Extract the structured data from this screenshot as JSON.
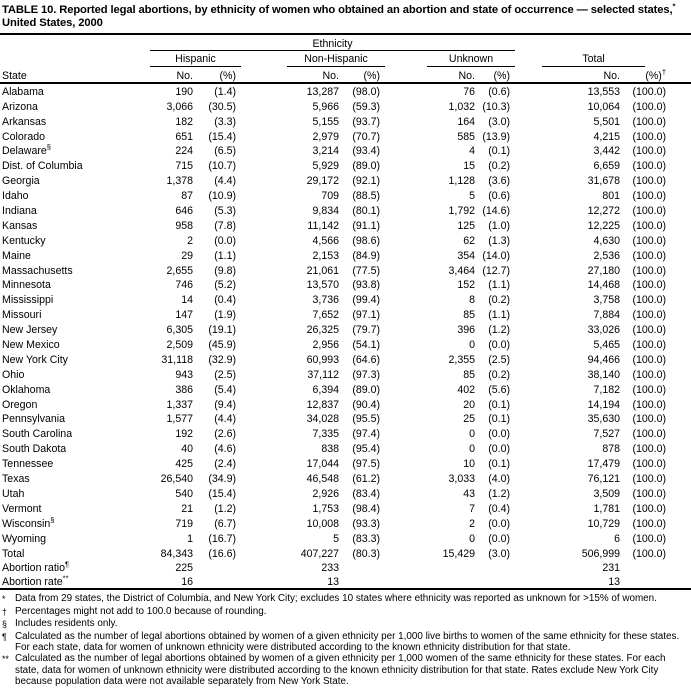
{
  "header": {
    "title_part1": "TABLE 10. Reported legal abortions, by ethnicity of women who obtained an abortion and state of occurrence — selected states,",
    "title_sup": "*",
    "title_part2": " United States, 2000"
  },
  "table": {
    "ethnicity_label": "Ethnicity",
    "state_label": "State",
    "groups": [
      {
        "label": "Hispanic",
        "no": "No.",
        "pct": "(%)"
      },
      {
        "label": "Non-Hispanic",
        "no": "No.",
        "pct": "(%)"
      },
      {
        "label": "Unknown",
        "no": "No.",
        "pct": "(%)"
      },
      {
        "label": "Total",
        "no": "No.",
        "pct": "(%)",
        "pct_sup": "†"
      }
    ],
    "rows": [
      {
        "state": "Alabama",
        "sup": "",
        "h_no": "190",
        "h_pct": "(1.4)",
        "nh_no": "13,287",
        "nh_pct": "(98.0)",
        "u_no": "76",
        "u_pct": "(0.6)",
        "t_no": "13,553",
        "t_pct": "(100.0)"
      },
      {
        "state": "Arizona",
        "sup": "",
        "h_no": "3,066",
        "h_pct": "(30.5)",
        "nh_no": "5,966",
        "nh_pct": "(59.3)",
        "u_no": "1,032",
        "u_pct": "(10.3)",
        "t_no": "10,064",
        "t_pct": "(100.0)"
      },
      {
        "state": "Arkansas",
        "sup": "",
        "h_no": "182",
        "h_pct": "(3.3)",
        "nh_no": "5,155",
        "nh_pct": "(93.7)",
        "u_no": "164",
        "u_pct": "(3.0)",
        "t_no": "5,501",
        "t_pct": "(100.0)"
      },
      {
        "state": "Colorado",
        "sup": "",
        "h_no": "651",
        "h_pct": "(15.4)",
        "nh_no": "2,979",
        "nh_pct": "(70.7)",
        "u_no": "585",
        "u_pct": "(13.9)",
        "t_no": "4,215",
        "t_pct": "(100.0)"
      },
      {
        "state": "Delaware",
        "sup": "§",
        "h_no": "224",
        "h_pct": "(6.5)",
        "nh_no": "3,214",
        "nh_pct": "(93.4)",
        "u_no": "4",
        "u_pct": "(0.1)",
        "t_no": "3,442",
        "t_pct": "(100.0)"
      },
      {
        "state": "Dist. of Columbia",
        "sup": "",
        "h_no": "715",
        "h_pct": "(10.7)",
        "nh_no": "5,929",
        "nh_pct": "(89.0)",
        "u_no": "15",
        "u_pct": "(0.2)",
        "t_no": "6,659",
        "t_pct": "(100.0)"
      },
      {
        "state": "Georgia",
        "sup": "",
        "h_no": "1,378",
        "h_pct": "(4.4)",
        "nh_no": "29,172",
        "nh_pct": "(92.1)",
        "u_no": "1,128",
        "u_pct": "(3.6)",
        "t_no": "31,678",
        "t_pct": "(100.0)"
      },
      {
        "state": "Idaho",
        "sup": "",
        "h_no": "87",
        "h_pct": "(10.9)",
        "nh_no": "709",
        "nh_pct": "(88.5)",
        "u_no": "5",
        "u_pct": "(0.6)",
        "t_no": "801",
        "t_pct": "(100.0)"
      },
      {
        "state": "Indiana",
        "sup": "",
        "h_no": "646",
        "h_pct": "(5.3)",
        "nh_no": "9,834",
        "nh_pct": "(80.1)",
        "u_no": "1,792",
        "u_pct": "(14.6)",
        "t_no": "12,272",
        "t_pct": "(100.0)"
      },
      {
        "state": "Kansas",
        "sup": "",
        "h_no": "958",
        "h_pct": "(7.8)",
        "nh_no": "11,142",
        "nh_pct": "(91.1)",
        "u_no": "125",
        "u_pct": "(1.0)",
        "t_no": "12,225",
        "t_pct": "(100.0)"
      },
      {
        "state": "Kentucky",
        "sup": "",
        "h_no": "2",
        "h_pct": "(0.0)",
        "nh_no": "4,566",
        "nh_pct": "(98.6)",
        "u_no": "62",
        "u_pct": "(1.3)",
        "t_no": "4,630",
        "t_pct": "(100.0)"
      },
      {
        "state": "Maine",
        "sup": "",
        "h_no": "29",
        "h_pct": "(1.1)",
        "nh_no": "2,153",
        "nh_pct": "(84.9)",
        "u_no": "354",
        "u_pct": "(14.0)",
        "t_no": "2,536",
        "t_pct": "(100.0)"
      },
      {
        "state": "Massachusetts",
        "sup": "",
        "h_no": "2,655",
        "h_pct": "(9.8)",
        "nh_no": "21,061",
        "nh_pct": "(77.5)",
        "u_no": "3,464",
        "u_pct": "(12.7)",
        "t_no": "27,180",
        "t_pct": "(100.0)"
      },
      {
        "state": "Minnesota",
        "sup": "",
        "h_no": "746",
        "h_pct": "(5.2)",
        "nh_no": "13,570",
        "nh_pct": "(93.8)",
        "u_no": "152",
        "u_pct": "(1.1)",
        "t_no": "14,468",
        "t_pct": "(100.0)"
      },
      {
        "state": "Mississippi",
        "sup": "",
        "h_no": "14",
        "h_pct": "(0.4)",
        "nh_no": "3,736",
        "nh_pct": "(99.4)",
        "u_no": "8",
        "u_pct": "(0.2)",
        "t_no": "3,758",
        "t_pct": "(100.0)"
      },
      {
        "state": "Missouri",
        "sup": "",
        "h_no": "147",
        "h_pct": "(1.9)",
        "nh_no": "7,652",
        "nh_pct": "(97.1)",
        "u_no": "85",
        "u_pct": "(1.1)",
        "t_no": "7,884",
        "t_pct": "(100.0)"
      },
      {
        "state": "New Jersey",
        "sup": "",
        "h_no": "6,305",
        "h_pct": "(19.1)",
        "nh_no": "26,325",
        "nh_pct": "(79.7)",
        "u_no": "396",
        "u_pct": "(1.2)",
        "t_no": "33,026",
        "t_pct": "(100.0)"
      },
      {
        "state": "New Mexico",
        "sup": "",
        "h_no": "2,509",
        "h_pct": "(45.9)",
        "nh_no": "2,956",
        "nh_pct": "(54.1)",
        "u_no": "0",
        "u_pct": "(0.0)",
        "t_no": "5,465",
        "t_pct": "(100.0)"
      },
      {
        "state": "New York City",
        "sup": "",
        "h_no": "31,118",
        "h_pct": "(32.9)",
        "nh_no": "60,993",
        "nh_pct": "(64.6)",
        "u_no": "2,355",
        "u_pct": "(2.5)",
        "t_no": "94,466",
        "t_pct": "(100.0)"
      },
      {
        "state": "Ohio",
        "sup": "",
        "h_no": "943",
        "h_pct": "(2.5)",
        "nh_no": "37,112",
        "nh_pct": "(97.3)",
        "u_no": "85",
        "u_pct": "(0.2)",
        "t_no": "38,140",
        "t_pct": "(100.0)"
      },
      {
        "state": "Oklahoma",
        "sup": "",
        "h_no": "386",
        "h_pct": "(5.4)",
        "nh_no": "6,394",
        "nh_pct": "(89.0)",
        "u_no": "402",
        "u_pct": "(5.6)",
        "t_no": "7,182",
        "t_pct": "(100.0)"
      },
      {
        "state": "Oregon",
        "sup": "",
        "h_no": "1,337",
        "h_pct": "(9.4)",
        "nh_no": "12,837",
        "nh_pct": "(90.4)",
        "u_no": "20",
        "u_pct": "(0.1)",
        "t_no": "14,194",
        "t_pct": "(100.0)"
      },
      {
        "state": "Pennsylvania",
        "sup": "",
        "h_no": "1,577",
        "h_pct": "(4.4)",
        "nh_no": "34,028",
        "nh_pct": "(95.5)",
        "u_no": "25",
        "u_pct": "(0.1)",
        "t_no": "35,630",
        "t_pct": "(100.0)"
      },
      {
        "state": "South Carolina",
        "sup": "",
        "h_no": "192",
        "h_pct": "(2.6)",
        "nh_no": "7,335",
        "nh_pct": "(97.4)",
        "u_no": "0",
        "u_pct": "(0.0)",
        "t_no": "7,527",
        "t_pct": "(100.0)"
      },
      {
        "state": "South Dakota",
        "sup": "",
        "h_no": "40",
        "h_pct": "(4.6)",
        "nh_no": "838",
        "nh_pct": "(95.4)",
        "u_no": "0",
        "u_pct": "(0.0)",
        "t_no": "878",
        "t_pct": "(100.0)"
      },
      {
        "state": "Tennessee",
        "sup": "",
        "h_no": "425",
        "h_pct": "(2.4)",
        "nh_no": "17,044",
        "nh_pct": "(97.5)",
        "u_no": "10",
        "u_pct": "(0.1)",
        "t_no": "17,479",
        "t_pct": "(100.0)"
      },
      {
        "state": "Texas",
        "sup": "",
        "h_no": "26,540",
        "h_pct": "(34.9)",
        "nh_no": "46,548",
        "nh_pct": "(61.2)",
        "u_no": "3,033",
        "u_pct": "(4.0)",
        "t_no": "76,121",
        "t_pct": "(100.0)"
      },
      {
        "state": "Utah",
        "sup": "",
        "h_no": "540",
        "h_pct": "(15.4)",
        "nh_no": "2,926",
        "nh_pct": "(83.4)",
        "u_no": "43",
        "u_pct": "(1.2)",
        "t_no": "3,509",
        "t_pct": "(100.0)"
      },
      {
        "state": "Vermont",
        "sup": "",
        "h_no": "21",
        "h_pct": "(1.2)",
        "nh_no": "1,753",
        "nh_pct": "(98.4)",
        "u_no": "7",
        "u_pct": "(0.4)",
        "t_no": "1,781",
        "t_pct": "(100.0)"
      },
      {
        "state": "Wisconsin",
        "sup": "§",
        "h_no": "719",
        "h_pct": "(6.7)",
        "nh_no": "10,008",
        "nh_pct": "(93.3)",
        "u_no": "2",
        "u_pct": "(0.0)",
        "t_no": "10,729",
        "t_pct": "(100.0)"
      },
      {
        "state": "Wyoming",
        "sup": "",
        "h_no": "1",
        "h_pct": "(16.7)",
        "nh_no": "5",
        "nh_pct": "(83.3)",
        "u_no": "0",
        "u_pct": "(0.0)",
        "t_no": "6",
        "t_pct": "(100.0)"
      },
      {
        "state": "Total",
        "sup": "",
        "h_no": "84,343",
        "h_pct": "(16.6)",
        "nh_no": "407,227",
        "nh_pct": "(80.3)",
        "u_no": "15,429",
        "u_pct": "(3.0)",
        "t_no": "506,999",
        "t_pct": "(100.0)"
      },
      {
        "state": "Abortion ratio",
        "sup": "¶",
        "h_no": "225",
        "h_pct": "",
        "nh_no": "233",
        "nh_pct": "",
        "u_no": "",
        "u_pct": "",
        "t_no": "231",
        "t_pct": ""
      },
      {
        "state": "Abortion rate",
        "sup": "**",
        "h_no": "16",
        "h_pct": "",
        "nh_no": "13",
        "nh_pct": "",
        "u_no": "",
        "u_pct": "",
        "t_no": "13",
        "t_pct": ""
      }
    ]
  },
  "footnotes": [
    {
      "marker": "*",
      "text": "Data from 29 states, the District of Columbia, and New York City; excludes 10 states where ethnicity was reported as unknown for >15% of women."
    },
    {
      "marker": "†",
      "text": "Percentages might not add to 100.0 because of rounding."
    },
    {
      "marker": "§",
      "text": "Includes residents only."
    },
    {
      "marker": "¶",
      "text": "Calculated as the number of legal abortions obtained by women of a given ethnicity per 1,000 live births to women of the same ethnicity for these states. For each state, data for women of unknown ethnicity were distributed according to the known ethnicity distribution for that state."
    },
    {
      "marker": "**",
      "text": "Calculated as the number of legal abortions obtained by women of a given ethnicity per 1,000 women of the same ethnicity for these states. For each state, data for women of unknown ethnicity were distributed according to the known ethnicity distribution for that state. Rates exclude New York City because population data were not available separately from New York State."
    }
  ]
}
